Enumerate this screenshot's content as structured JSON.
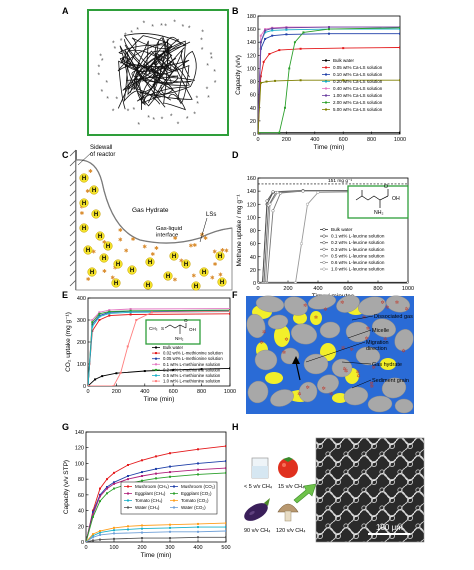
{
  "panels": {
    "A": {
      "letter": "A"
    },
    "B": {
      "letter": "B"
    },
    "C": {
      "letter": "C"
    },
    "D": {
      "letter": "D"
    },
    "E": {
      "letter": "E"
    },
    "F": {
      "letter": "F"
    },
    "G": {
      "letter": "G"
    },
    "H": {
      "letter": "H"
    }
  },
  "colors": {
    "green_frame": "#2e9e3a",
    "blue_bg": "#2a6bd6",
    "yellow": "#f2ef2a",
    "grain": "#a8a8a8"
  },
  "chart_data": [
    {
      "panel": "B",
      "type": "line",
      "xlabel": "Time (min)",
      "ylabel": "Capacity (v/v)",
      "xlim": [
        0,
        1000
      ],
      "ylim": [
        0,
        180
      ],
      "xticks": [
        0,
        200,
        400,
        600,
        800,
        1000
      ],
      "yticks": [
        0,
        20,
        40,
        60,
        80,
        100,
        120,
        140,
        160,
        180
      ],
      "legend_position": "bottom-right",
      "series": [
        {
          "name": "Bulk water",
          "color": "#000000",
          "x": [
            0,
            1000
          ],
          "y": [
            2,
            2
          ]
        },
        {
          "name": "0.05 wt% Ca-LS solution",
          "color": "#e41a1c",
          "x": [
            0,
            20,
            40,
            80,
            150,
            300,
            600,
            1000
          ],
          "y": [
            0,
            88,
            110,
            122,
            128,
            130,
            131,
            132
          ]
        },
        {
          "name": "0.10  wt% Ca-LS solution",
          "color": "#1f3fa8",
          "x": [
            0,
            20,
            50,
            100,
            200,
            500,
            1000
          ],
          "y": [
            0,
            130,
            145,
            150,
            152,
            153,
            153
          ]
        },
        {
          "name": "0.20  wt% Ca-LS solution",
          "color": "#1ab0c8",
          "x": [
            0,
            20,
            50,
            100,
            200,
            500,
            1000
          ],
          "y": [
            0,
            140,
            155,
            158,
            159,
            160,
            160
          ]
        },
        {
          "name": "0.40  wt% Ca-LS solution",
          "color": "#e377c2",
          "x": [
            0,
            20,
            50,
            100,
            200,
            500,
            1000
          ],
          "y": [
            0,
            150,
            160,
            162,
            163,
            163,
            163
          ]
        },
        {
          "name": "1.00  wt% Ca-LS solution",
          "color": "#6b3fa0",
          "x": [
            0,
            20,
            50,
            100,
            200,
            500,
            1000
          ],
          "y": [
            0,
            140,
            158,
            161,
            162,
            163,
            163
          ]
        },
        {
          "name": "2.00  wt% Ca-LS solution",
          "color": "#2ca02c",
          "x": [
            0,
            150,
            190,
            220,
            260,
            320,
            500,
            1000
          ],
          "y": [
            2,
            2,
            40,
            100,
            140,
            155,
            160,
            162
          ]
        },
        {
          "name": "5.00  wt% Ca-LS solution",
          "color": "#7f7f00",
          "x": [
            0,
            20,
            60,
            120,
            300,
            600,
            1000
          ],
          "y": [
            0,
            78,
            80,
            81,
            82,
            82,
            82
          ]
        }
      ]
    },
    {
      "panel": "D",
      "type": "line",
      "xlabel": "Time / minutes",
      "ylabel": "Methane uptake / mg g⁻¹",
      "xlim": [
        0,
        1000
      ],
      "ylim": [
        0,
        160
      ],
      "xticks": [
        0,
        200,
        400,
        600,
        800,
        1000
      ],
      "yticks": [
        0,
        20,
        40,
        60,
        80,
        100,
        120,
        140,
        160
      ],
      "annotation": "151 mg g⁻¹",
      "reference_y": 151,
      "legend_position": "bottom-right",
      "series": [
        {
          "name": "Bulk water",
          "x": [
            0,
            1000
          ],
          "y": [
            1,
            1
          ]
        },
        {
          "name": "0.1  wt% L-leucine solution",
          "x": [
            0,
            30,
            60,
            100,
            300,
            1000
          ],
          "y": [
            0,
            0,
            120,
            138,
            140,
            140
          ]
        },
        {
          "name": "0.2  wt% L-leucine solution",
          "x": [
            0,
            30,
            60,
            100,
            300,
            1000
          ],
          "y": [
            0,
            0,
            125,
            139,
            141,
            141
          ]
        },
        {
          "name": "0.3  wt% L-leucine solution",
          "x": [
            0,
            40,
            70,
            120,
            300,
            1000
          ],
          "y": [
            0,
            0,
            118,
            138,
            140,
            140
          ]
        },
        {
          "name": "0.5  wt% L-leucine solution",
          "x": [
            0,
            60,
            100,
            150,
            300,
            1000
          ],
          "y": [
            0,
            0,
            110,
            137,
            140,
            140
          ]
        },
        {
          "name": "0.6  wt% L-leucine solution",
          "x": [
            0,
            50,
            80,
            130,
            300,
            1000
          ],
          "y": [
            0,
            0,
            120,
            138,
            140,
            140
          ]
        },
        {
          "name": "1.0  wt% L-leucine solution",
          "x": [
            0,
            250,
            290,
            330,
            400,
            1000
          ],
          "y": [
            0,
            0,
            60,
            120,
            138,
            140
          ]
        }
      ]
    },
    {
      "panel": "E",
      "type": "line",
      "xlabel": "Time (min)",
      "ylabel": "CO₂ uptake (mg g⁻¹)",
      "xlim": [
        0,
        1000
      ],
      "ylim": [
        0,
        400
      ],
      "xticks": [
        0,
        200,
        400,
        600,
        800,
        1000
      ],
      "yticks": [
        0,
        100,
        200,
        300,
        400
      ],
      "legend_position": "bottom-right",
      "series": [
        {
          "name": "Bulk water",
          "color": "#000000",
          "x": [
            0,
            50,
            100,
            200,
            400,
            600,
            800,
            1000
          ],
          "y": [
            0,
            30,
            45,
            58,
            68,
            73,
            77,
            80
          ]
        },
        {
          "name": "0.02  wt% L-methionine solution",
          "color": "#e41a1c",
          "x": [
            0,
            30,
            80,
            150,
            300,
            1000
          ],
          "y": [
            0,
            250,
            300,
            320,
            325,
            328
          ]
        },
        {
          "name": "0.05  wt% L-methionine solution",
          "color": "#1f3fa8",
          "x": [
            0,
            30,
            80,
            150,
            300,
            1000
          ],
          "y": [
            0,
            280,
            320,
            335,
            340,
            342
          ]
        },
        {
          "name": "0.1  wt% L-methionine solution",
          "color": "#e377c2",
          "x": [
            0,
            30,
            80,
            150,
            300,
            1000
          ],
          "y": [
            0,
            300,
            335,
            345,
            350,
            352
          ]
        },
        {
          "name": "0.2  wt% L-methionine solution",
          "color": "#2ca02c",
          "x": [
            0,
            30,
            80,
            150,
            300,
            1000
          ],
          "y": [
            0,
            290,
            328,
            338,
            342,
            345
          ]
        },
        {
          "name": "0.5  wt% L-methionine solution",
          "color": "#1ab0c8",
          "x": [
            0,
            30,
            80,
            150,
            300,
            1000
          ],
          "y": [
            0,
            270,
            315,
            330,
            335,
            338
          ]
        },
        {
          "name": "1.0  wt% L-methionine solution",
          "color": "#ff7f7f",
          "x": [
            0,
            180,
            230,
            280,
            340,
            450,
            1000
          ],
          "y": [
            0,
            0,
            60,
            180,
            300,
            335,
            340
          ]
        }
      ]
    },
    {
      "panel": "G",
      "type": "line",
      "xlabel": "Time (min)",
      "ylabel": "Capacity (v/v STP)",
      "xlim": [
        0,
        500
      ],
      "ylim": [
        0,
        140
      ],
      "xticks": [
        0,
        100,
        200,
        300,
        400,
        500
      ],
      "yticks": [
        0,
        20,
        40,
        60,
        80,
        100,
        120,
        140
      ],
      "legend_position": "center",
      "series": [
        {
          "name": "Mushroom (CH₄)",
          "color": "#e41a1c",
          "x": [
            0,
            25,
            50,
            75,
            100,
            150,
            200,
            250,
            300,
            400,
            500
          ],
          "y": [
            0,
            40,
            68,
            80,
            88,
            98,
            104,
            109,
            113,
            118,
            122
          ]
        },
        {
          "name": "Mushroom (CO₂)",
          "color": "#1f3fa8",
          "x": [
            0,
            25,
            50,
            75,
            100,
            150,
            200,
            250,
            300,
            400,
            500
          ],
          "y": [
            0,
            38,
            60,
            70,
            76,
            84,
            89,
            93,
            96,
            100,
            103
          ]
        },
        {
          "name": "Eggplant (CH₄)",
          "color": "#b0207a",
          "x": [
            0,
            25,
            50,
            75,
            100,
            150,
            200,
            250,
            300,
            400,
            500
          ],
          "y": [
            0,
            35,
            58,
            68,
            74,
            80,
            84,
            87,
            89,
            92,
            94
          ]
        },
        {
          "name": "Eggplant (CO₂)",
          "color": "#2ca02c",
          "x": [
            0,
            25,
            50,
            75,
            100,
            150,
            200,
            250,
            300,
            400,
            500
          ],
          "y": [
            0,
            32,
            52,
            62,
            68,
            74,
            78,
            81,
            83,
            86,
            88
          ]
        },
        {
          "name": "Tomato (CH₄)",
          "color": "#1ab0c8",
          "x": [
            0,
            25,
            50,
            100,
            150,
            200,
            300,
            400,
            500
          ],
          "y": [
            0,
            8,
            12,
            15,
            16,
            17,
            18,
            19,
            19
          ]
        },
        {
          "name": "Tomato (CO₂)",
          "color": "#ff9f1c",
          "x": [
            0,
            25,
            50,
            100,
            150,
            200,
            300,
            400,
            500
          ],
          "y": [
            0,
            10,
            14,
            18,
            20,
            21,
            22,
            23,
            24
          ]
        },
        {
          "name": "Water (CH₄)",
          "color": "#555555",
          "x": [
            0,
            25,
            50,
            100,
            200,
            300,
            400,
            500
          ],
          "y": [
            0,
            2,
            3,
            4,
            5,
            5,
            6,
            6
          ]
        },
        {
          "name": "Water (CO₂)",
          "color": "#6fa0d8",
          "x": [
            0,
            25,
            50,
            100,
            200,
            300,
            400,
            500
          ],
          "y": [
            0,
            6,
            9,
            11,
            12,
            13,
            13,
            14
          ]
        }
      ]
    }
  ],
  "schematic_c": {
    "sidewall_label": "Sidewall\nof reactor",
    "gas_hydrate_label": "Gas Hydrate",
    "interface_label": "Gas-liquid\ninterface",
    "lss_label": "LSs",
    "hydrate_marker": "H"
  },
  "schematic_f": {
    "labels": [
      "Dissociated gas",
      "Micelle",
      "Migration\ndirection",
      "Gas hydrate",
      "Sediment grain"
    ]
  },
  "panel_h": {
    "items": [
      {
        "label": "< 5 v/v CH₄"
      },
      {
        "label": "15 v/v CH₄"
      },
      {
        "label": "90 v/v CH₄"
      },
      {
        "label": "120 v/v CH₄"
      }
    ],
    "scale_bar": "100 μm"
  },
  "inset_d": {
    "oh": "OH",
    "o": "O",
    "nh2": "NH₂"
  },
  "inset_e": {
    "chain": "CH₃",
    "s": "S",
    "o": "O",
    "oh": "OH",
    "nh2": "NH₂"
  }
}
